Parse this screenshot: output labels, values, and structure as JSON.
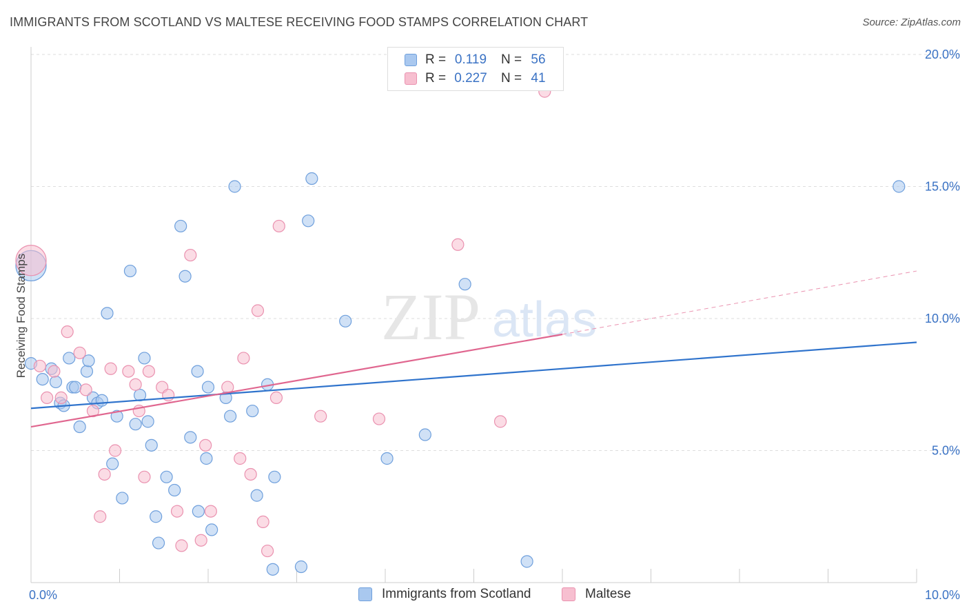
{
  "header": {
    "title": "IMMIGRANTS FROM SCOTLAND VS MALTESE RECEIVING FOOD STAMPS CORRELATION CHART",
    "source": "Source: ZipAtlas.com"
  },
  "watermark": {
    "zip": "ZIP",
    "atlas": "atlas"
  },
  "legend_top": [
    {
      "r_label": "R =",
      "r_value": "0.119",
      "n_label": "N =",
      "n_value": "56"
    },
    {
      "r_label": "R =",
      "r_value": "0.227",
      "n_label": "N =",
      "n_value": "41"
    }
  ],
  "colors": {
    "scotland_fill": "#a9c8ef",
    "scotland_stroke": "#6e9fdc",
    "scotland_line": "#2f73cc",
    "maltese_fill": "#f7bfd0",
    "maltese_stroke": "#ea91af",
    "maltese_line": "#e0668f",
    "axis_text": "#3a72c4",
    "grid": "#dddddd"
  },
  "chart_data": {
    "type": "scatter",
    "title": "IMMIGRANTS FROM SCOTLAND VS MALTESE RECEIVING FOOD STAMPS CORRELATION CHART",
    "xlabel": "",
    "ylabel": "Receiving Food Stamps",
    "xlim": [
      0,
      10
    ],
    "ylim": [
      0,
      20
    ],
    "x_tick_labels": [
      "0.0%",
      "10.0%"
    ],
    "y_ticks": [
      5,
      10,
      15,
      20
    ],
    "y_tick_labels": [
      "5.0%",
      "10.0%",
      "15.0%",
      "20.0%"
    ],
    "grid": true,
    "legend_position": "top-center",
    "series": [
      {
        "name": "Immigrants from Scotland",
        "R": 0.119,
        "N": 56,
        "trend": {
          "x": [
            0,
            10
          ],
          "y": [
            6.6,
            9.1
          ]
        },
        "points": [
          {
            "x": 0.0,
            "y": 12.0,
            "big": true
          },
          {
            "x": 0.0,
            "y": 8.3
          },
          {
            "x": 0.13,
            "y": 7.7
          },
          {
            "x": 0.23,
            "y": 8.1
          },
          {
            "x": 0.28,
            "y": 7.6
          },
          {
            "x": 0.33,
            "y": 6.8
          },
          {
            "x": 0.37,
            "y": 6.7
          },
          {
            "x": 0.43,
            "y": 8.5
          },
          {
            "x": 0.47,
            "y": 7.4
          },
          {
            "x": 0.5,
            "y": 7.4
          },
          {
            "x": 0.55,
            "y": 5.9
          },
          {
            "x": 0.63,
            "y": 8.0
          },
          {
            "x": 0.65,
            "y": 8.4
          },
          {
            "x": 0.7,
            "y": 7.0
          },
          {
            "x": 0.75,
            "y": 6.8
          },
          {
            "x": 0.8,
            "y": 6.9
          },
          {
            "x": 0.86,
            "y": 10.2
          },
          {
            "x": 0.92,
            "y": 4.5
          },
          {
            "x": 0.97,
            "y": 6.3
          },
          {
            "x": 1.03,
            "y": 3.2
          },
          {
            "x": 1.12,
            "y": 11.8
          },
          {
            "x": 1.18,
            "y": 6.0
          },
          {
            "x": 1.23,
            "y": 7.1
          },
          {
            "x": 1.28,
            "y": 8.5
          },
          {
            "x": 1.32,
            "y": 6.1
          },
          {
            "x": 1.36,
            "y": 5.2
          },
          {
            "x": 1.41,
            "y": 2.5
          },
          {
            "x": 1.44,
            "y": 1.5
          },
          {
            "x": 1.53,
            "y": 4.0
          },
          {
            "x": 1.62,
            "y": 3.5
          },
          {
            "x": 1.69,
            "y": 13.5
          },
          {
            "x": 1.74,
            "y": 11.6
          },
          {
            "x": 1.8,
            "y": 5.5
          },
          {
            "x": 1.88,
            "y": 8.0
          },
          {
            "x": 1.89,
            "y": 2.7
          },
          {
            "x": 1.98,
            "y": 4.7
          },
          {
            "x": 2.0,
            "y": 7.4
          },
          {
            "x": 2.04,
            "y": 2.0
          },
          {
            "x": 2.2,
            "y": 7.0
          },
          {
            "x": 2.25,
            "y": 6.3
          },
          {
            "x": 2.3,
            "y": 15.0
          },
          {
            "x": 2.5,
            "y": 6.5
          },
          {
            "x": 2.55,
            "y": 3.3
          },
          {
            "x": 2.67,
            "y": 7.5
          },
          {
            "x": 2.73,
            "y": 0.5
          },
          {
            "x": 2.75,
            "y": 4.0
          },
          {
            "x": 3.05,
            "y": 0.6
          },
          {
            "x": 3.13,
            "y": 13.7
          },
          {
            "x": 3.17,
            "y": 15.3
          },
          {
            "x": 3.55,
            "y": 9.9
          },
          {
            "x": 4.02,
            "y": 4.7
          },
          {
            "x": 4.45,
            "y": 5.6
          },
          {
            "x": 4.9,
            "y": 11.3
          },
          {
            "x": 5.6,
            "y": 0.8
          },
          {
            "x": 9.8,
            "y": 15.0
          }
        ]
      },
      {
        "name": "Maltese",
        "R": 0.227,
        "N": 41,
        "trend": {
          "x": [
            0,
            6.0
          ],
          "y": [
            5.9,
            9.4
          ]
        },
        "trend_extension": {
          "x": [
            6.0,
            10
          ],
          "y": [
            9.4,
            11.8
          ]
        },
        "points": [
          {
            "x": 0.0,
            "y": 12.2,
            "big": true
          },
          {
            "x": 0.1,
            "y": 8.2
          },
          {
            "x": 0.18,
            "y": 7.0
          },
          {
            "x": 0.26,
            "y": 8.0
          },
          {
            "x": 0.34,
            "y": 7.0
          },
          {
            "x": 0.41,
            "y": 9.5
          },
          {
            "x": 0.55,
            "y": 8.7
          },
          {
            "x": 0.62,
            "y": 7.3
          },
          {
            "x": 0.7,
            "y": 6.5
          },
          {
            "x": 0.78,
            "y": 2.5
          },
          {
            "x": 0.83,
            "y": 4.1
          },
          {
            "x": 0.9,
            "y": 8.1
          },
          {
            "x": 0.95,
            "y": 5.0
          },
          {
            "x": 1.1,
            "y": 8.0
          },
          {
            "x": 1.18,
            "y": 7.5
          },
          {
            "x": 1.22,
            "y": 6.5
          },
          {
            "x": 1.28,
            "y": 4.0
          },
          {
            "x": 1.33,
            "y": 8.0
          },
          {
            "x": 1.48,
            "y": 7.4
          },
          {
            "x": 1.55,
            "y": 7.1
          },
          {
            "x": 1.65,
            "y": 2.7
          },
          {
            "x": 1.7,
            "y": 1.4
          },
          {
            "x": 1.8,
            "y": 12.4
          },
          {
            "x": 1.92,
            "y": 1.6
          },
          {
            "x": 1.97,
            "y": 5.2
          },
          {
            "x": 2.03,
            "y": 2.7
          },
          {
            "x": 2.22,
            "y": 7.4
          },
          {
            "x": 2.36,
            "y": 4.7
          },
          {
            "x": 2.4,
            "y": 8.5
          },
          {
            "x": 2.48,
            "y": 4.1
          },
          {
            "x": 2.56,
            "y": 10.3
          },
          {
            "x": 2.62,
            "y": 2.3
          },
          {
            "x": 2.67,
            "y": 1.2
          },
          {
            "x": 2.77,
            "y": 7.0
          },
          {
            "x": 2.8,
            "y": 13.5
          },
          {
            "x": 3.27,
            "y": 6.3
          },
          {
            "x": 3.93,
            "y": 6.2
          },
          {
            "x": 4.82,
            "y": 12.8
          },
          {
            "x": 5.3,
            "y": 6.1
          },
          {
            "x": 5.8,
            "y": 18.6
          }
        ]
      }
    ]
  },
  "legend_bottom": {
    "items": [
      "Immigrants from Scotland",
      "Maltese"
    ]
  }
}
